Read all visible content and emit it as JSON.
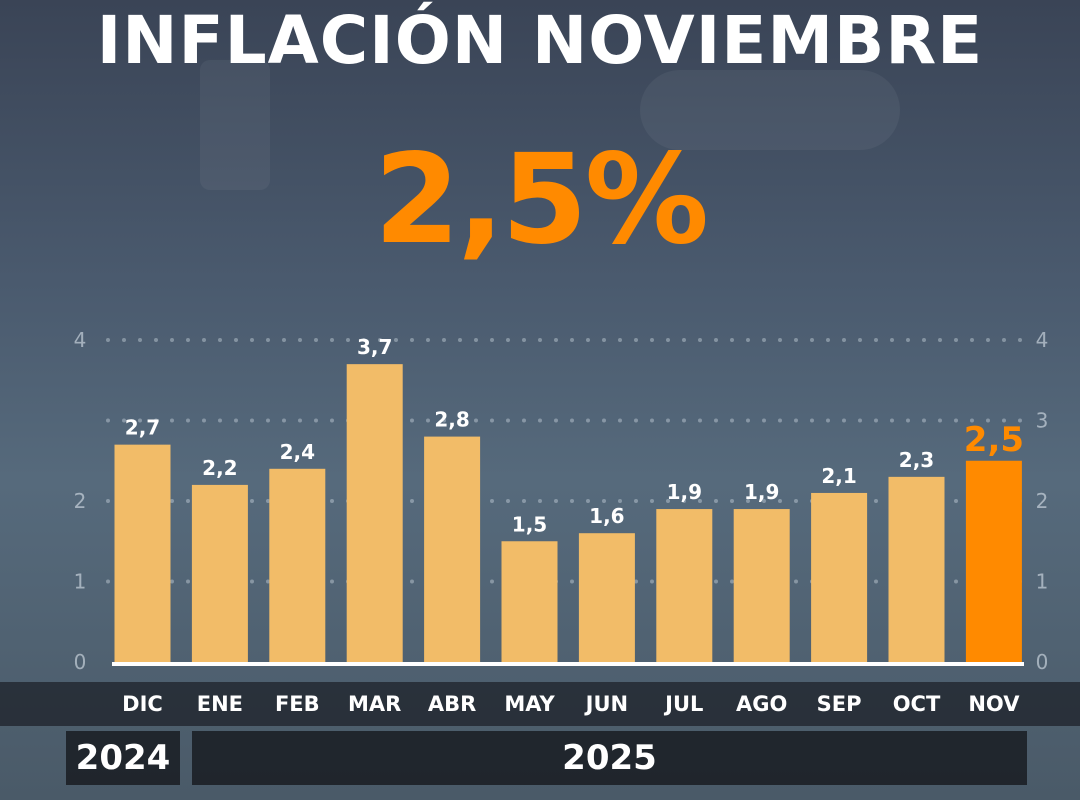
{
  "title": "INFLACIÓN NOVIEMBRE",
  "headline": "2,5%",
  "chart_data": {
    "type": "bar",
    "categories": [
      "DIC",
      "ENE",
      "FEB",
      "MAR",
      "ABR",
      "MAY",
      "JUN",
      "JUL",
      "AGO",
      "SEP",
      "OCT",
      "NOV"
    ],
    "values": [
      2.7,
      2.2,
      2.4,
      3.7,
      2.8,
      1.5,
      1.6,
      1.9,
      1.9,
      2.1,
      2.3,
      2.5
    ],
    "data_labels": [
      "2,7",
      "2,2",
      "2,4",
      "3,7",
      "2,8",
      "1,5",
      "1,6",
      "1,9",
      "1,9",
      "2,1",
      "2,3",
      "2,5"
    ],
    "ylim": [
      0,
      4
    ],
    "left_ticks": [
      "0",
      "1",
      "2",
      "4"
    ],
    "left_tick_values": [
      0,
      1,
      2,
      4
    ],
    "right_ticks": [
      "0",
      "1",
      "2",
      "3",
      "4"
    ],
    "right_tick_values": [
      0,
      1,
      2,
      3,
      4
    ],
    "grid": true,
    "highlight_index": 11,
    "colors": {
      "bar": "#f2bc68",
      "highlight": "#ff8a00"
    },
    "years": [
      {
        "label": "2024"
      },
      {
        "label": "2025"
      }
    ]
  }
}
